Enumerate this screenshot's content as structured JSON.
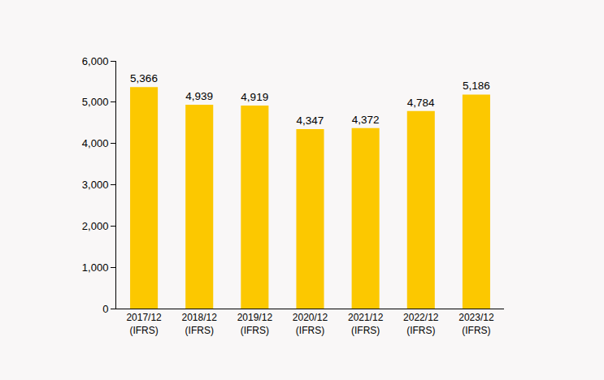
{
  "chart_data": {
    "type": "bar",
    "categories": [
      "2017/12\n(IFRS)",
      "2018/12\n(IFRS)",
      "2019/12\n(IFRS)",
      "2020/12\n(IFRS)",
      "2021/12\n(IFRS)",
      "2022/12\n(IFRS)",
      "2023/12\n(IFRS)"
    ],
    "values": [
      5366,
      4939,
      4919,
      4347,
      4372,
      4784,
      5186
    ],
    "value_labels": [
      "5,366",
      "4,939",
      "4,919",
      "4,347",
      "4,372",
      "4,784",
      "5,186"
    ],
    "color": "#fcc800",
    "ylim": [
      0,
      6000
    ],
    "yticks": [
      0,
      {
        "value": 1000,
        "label": "1,000"
      },
      {
        "value": 2000,
        "label": "2,000"
      },
      {
        "value": 3000,
        "label": "3,000"
      },
      {
        "value": 4000,
        "label": "4,000"
      },
      {
        "value": 5000,
        "label": "5,000"
      },
      {
        "value": 6000,
        "label": "6,000"
      }
    ],
    "grid": false,
    "data_labels": true
  }
}
